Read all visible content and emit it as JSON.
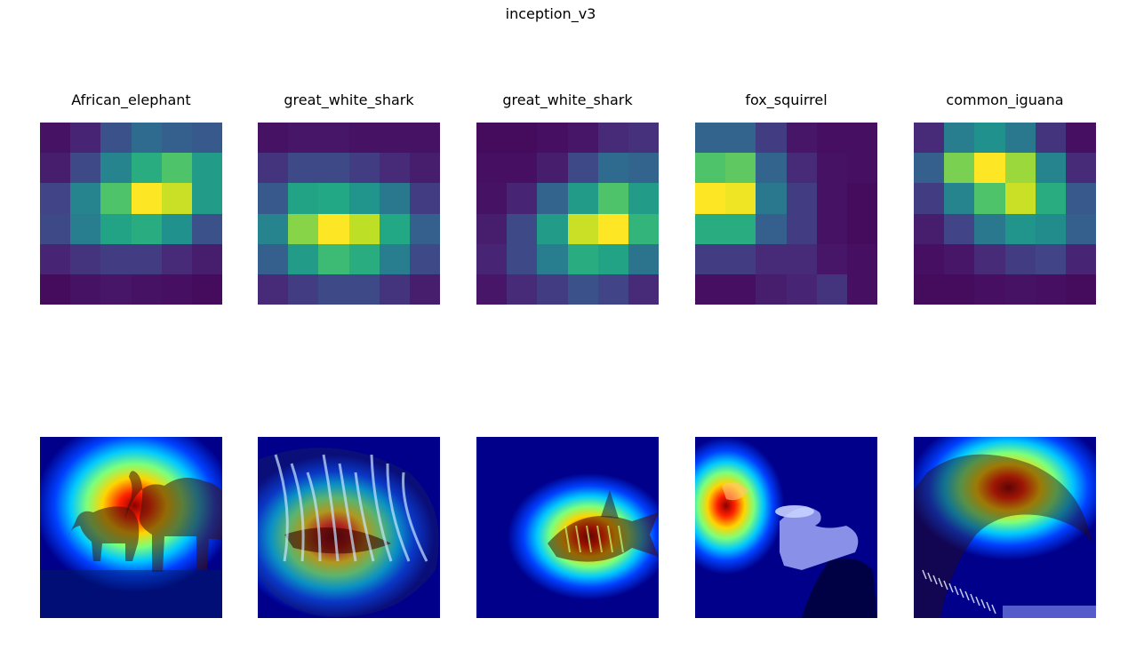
{
  "figure": {
    "title": "inception_v3"
  },
  "chart_data": {
    "type": "heatmap",
    "colormap": "viridis",
    "panels": [
      {
        "label": "African_elephant",
        "grid": [
          [
            0.05,
            0.1,
            0.25,
            0.35,
            0.3,
            0.28
          ],
          [
            0.08,
            0.22,
            0.45,
            0.62,
            0.72,
            0.55
          ],
          [
            0.2,
            0.45,
            0.72,
            1.0,
            0.92,
            0.55
          ],
          [
            0.22,
            0.42,
            0.58,
            0.62,
            0.5,
            0.25
          ],
          [
            0.1,
            0.15,
            0.18,
            0.18,
            0.12,
            0.08
          ],
          [
            0.03,
            0.05,
            0.06,
            0.05,
            0.04,
            0.03
          ]
        ],
        "overlay": {
          "scene": "elephant",
          "hot_x": 0.52,
          "hot_y": 0.38,
          "rx": 0.55,
          "ry": 0.48
        }
      },
      {
        "label": "great_white_shark",
        "grid": [
          [
            0.05,
            0.06,
            0.06,
            0.05,
            0.05,
            0.05
          ],
          [
            0.15,
            0.22,
            0.22,
            0.18,
            0.12,
            0.08
          ],
          [
            0.28,
            0.58,
            0.6,
            0.52,
            0.4,
            0.18
          ],
          [
            0.45,
            0.82,
            1.0,
            0.9,
            0.6,
            0.3
          ],
          [
            0.3,
            0.55,
            0.68,
            0.62,
            0.42,
            0.22
          ],
          [
            0.12,
            0.18,
            0.22,
            0.22,
            0.15,
            0.08
          ]
        ],
        "overlay": {
          "scene": "shark-close",
          "hot_x": 0.42,
          "hot_y": 0.55,
          "rx": 0.55,
          "ry": 0.45
        }
      },
      {
        "label": "great_white_shark",
        "grid": [
          [
            0.03,
            0.03,
            0.04,
            0.06,
            0.12,
            0.14
          ],
          [
            0.04,
            0.04,
            0.08,
            0.22,
            0.35,
            0.32
          ],
          [
            0.05,
            0.1,
            0.32,
            0.55,
            0.72,
            0.55
          ],
          [
            0.08,
            0.22,
            0.55,
            0.92,
            1.0,
            0.65
          ],
          [
            0.1,
            0.22,
            0.42,
            0.62,
            0.58,
            0.38
          ],
          [
            0.06,
            0.12,
            0.18,
            0.25,
            0.2,
            0.12
          ]
        ],
        "overlay": {
          "scene": "shark-far",
          "hot_x": 0.62,
          "hot_y": 0.55,
          "rx": 0.45,
          "ry": 0.35
        }
      },
      {
        "label": "fox_squirrel",
        "grid": [
          [
            0.32,
            0.32,
            0.18,
            0.06,
            0.04,
            0.04
          ],
          [
            0.72,
            0.75,
            0.32,
            0.12,
            0.05,
            0.04
          ],
          [
            1.0,
            0.98,
            0.4,
            0.18,
            0.05,
            0.03
          ],
          [
            0.62,
            0.62,
            0.3,
            0.18,
            0.05,
            0.03
          ],
          [
            0.18,
            0.18,
            0.12,
            0.12,
            0.06,
            0.04
          ],
          [
            0.04,
            0.04,
            0.08,
            0.1,
            0.15,
            0.04
          ]
        ],
        "overlay": {
          "scene": "squirrel",
          "hot_x": 0.17,
          "hot_y": 0.38,
          "rx": 0.32,
          "ry": 0.38
        }
      },
      {
        "label": "common_iguana",
        "grid": [
          [
            0.12,
            0.42,
            0.5,
            0.4,
            0.15,
            0.04
          ],
          [
            0.3,
            0.8,
            1.0,
            0.85,
            0.45,
            0.12
          ],
          [
            0.18,
            0.45,
            0.72,
            0.92,
            0.62,
            0.28
          ],
          [
            0.08,
            0.2,
            0.4,
            0.52,
            0.48,
            0.3
          ],
          [
            0.04,
            0.06,
            0.12,
            0.18,
            0.2,
            0.1
          ],
          [
            0.03,
            0.03,
            0.04,
            0.05,
            0.04,
            0.03
          ]
        ],
        "overlay": {
          "scene": "iguana",
          "hot_x": 0.52,
          "hot_y": 0.28,
          "rx": 0.55,
          "ry": 0.4
        }
      }
    ]
  }
}
